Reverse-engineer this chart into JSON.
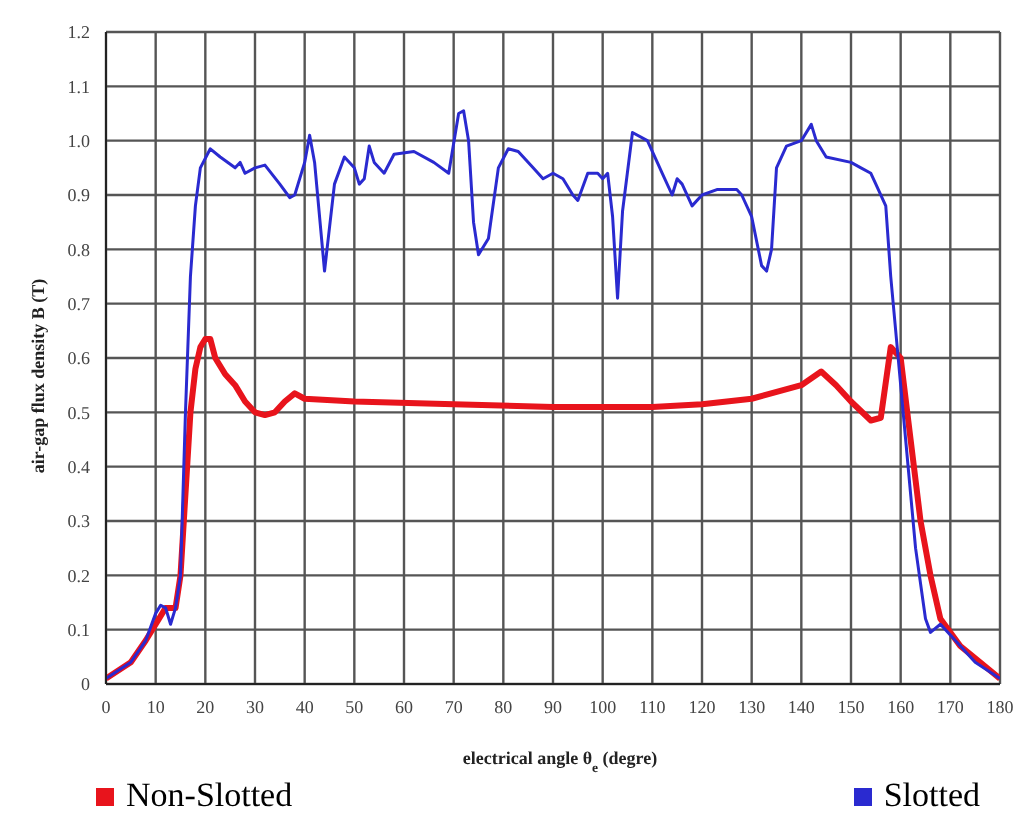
{
  "chart_data": {
    "type": "line",
    "xlabel": "electrical angle θ$_{e}$ (degre)",
    "ylabel": "air-gap flux density B (T)",
    "xlim": [
      0,
      180
    ],
    "xticks": [
      0,
      10,
      20,
      30,
      40,
      50,
      60,
      70,
      80,
      90,
      100,
      110,
      120,
      130,
      140,
      150,
      160,
      170,
      180
    ],
    "ylim": [
      0,
      1.2
    ],
    "yticks": [
      0,
      0.1,
      0.2,
      0.3,
      0.4,
      0.5,
      0.6,
      0.7,
      0.8,
      0.9,
      {
        "value": 1,
        "label": "1.0"
      },
      1.1,
      1.2
    ],
    "grid": true,
    "legend": "bottom",
    "marker": "none",
    "line_style": "solid",
    "series": [
      {
        "name": "Non-Slotted",
        "color": "#e8141c",
        "x": [
          0,
          5,
          8,
          10,
          12,
          14,
          15,
          16,
          17,
          18,
          19,
          20,
          21,
          22,
          24,
          26,
          28,
          30,
          32,
          34,
          36,
          38,
          40,
          50,
          70,
          90,
          110,
          120,
          130,
          140,
          144,
          147,
          150,
          154,
          156,
          158,
          160,
          162,
          164,
          166,
          168,
          172,
          176,
          180
        ],
        "values": [
          0.01,
          0.04,
          0.08,
          0.11,
          0.14,
          0.14,
          0.2,
          0.35,
          0.5,
          0.58,
          0.62,
          0.635,
          0.635,
          0.6,
          0.57,
          0.55,
          0.52,
          0.5,
          0.495,
          0.5,
          0.52,
          0.535,
          0.525,
          0.52,
          0.515,
          0.51,
          0.51,
          0.515,
          0.525,
          0.55,
          0.575,
          0.55,
          0.52,
          0.485,
          0.49,
          0.62,
          0.6,
          0.45,
          0.3,
          0.2,
          0.12,
          0.07,
          0.04,
          0.01
        ]
      },
      {
        "name": "Slotted",
        "color": "#2a2ad0",
        "x": [
          0,
          5,
          8,
          10,
          11,
          12,
          13,
          14,
          15,
          16,
          17,
          18,
          19,
          21,
          23,
          26,
          27,
          28,
          30,
          32,
          35,
          37,
          38,
          40,
          41,
          42,
          44,
          46,
          48,
          50,
          51,
          52,
          53,
          54,
          56,
          58,
          62,
          66,
          69,
          71,
          72,
          73,
          74,
          75,
          77,
          79,
          81,
          83,
          86,
          88,
          90,
          92,
          94,
          95,
          97,
          99,
          100,
          101,
          102,
          103,
          104,
          106,
          109,
          111,
          112,
          114,
          115,
          116,
          118,
          120,
          123,
          127,
          128,
          130,
          132,
          133,
          134,
          135,
          137,
          140,
          142,
          143,
          145,
          150,
          152,
          154,
          155,
          157,
          158,
          160,
          162,
          163,
          165,
          166,
          168,
          170,
          175,
          180
        ],
        "values": [
          0.01,
          0.04,
          0.08,
          0.13,
          0.145,
          0.14,
          0.11,
          0.14,
          0.2,
          0.5,
          0.75,
          0.88,
          0.95,
          0.985,
          0.97,
          0.95,
          0.96,
          0.94,
          0.95,
          0.955,
          0.92,
          0.895,
          0.9,
          0.96,
          1.01,
          0.96,
          0.76,
          0.92,
          0.97,
          0.95,
          0.92,
          0.93,
          0.99,
          0.96,
          0.94,
          0.975,
          0.98,
          0.96,
          0.94,
          1.05,
          1.055,
          1.0,
          0.85,
          0.79,
          0.82,
          0.95,
          0.985,
          0.98,
          0.95,
          0.93,
          0.94,
          0.93,
          0.9,
          0.89,
          0.94,
          0.94,
          0.93,
          0.94,
          0.86,
          0.71,
          0.87,
          1.015,
          1.0,
          0.96,
          0.94,
          0.9,
          0.93,
          0.92,
          0.88,
          0.9,
          0.91,
          0.91,
          0.9,
          0.86,
          0.77,
          0.76,
          0.8,
          0.95,
          0.99,
          1.0,
          1.03,
          1.0,
          0.97,
          0.96,
          0.95,
          0.94,
          0.92,
          0.88,
          0.75,
          0.55,
          0.35,
          0.25,
          0.12,
          0.095,
          0.11,
          0.09,
          0.04,
          0.01
        ]
      }
    ]
  }
}
